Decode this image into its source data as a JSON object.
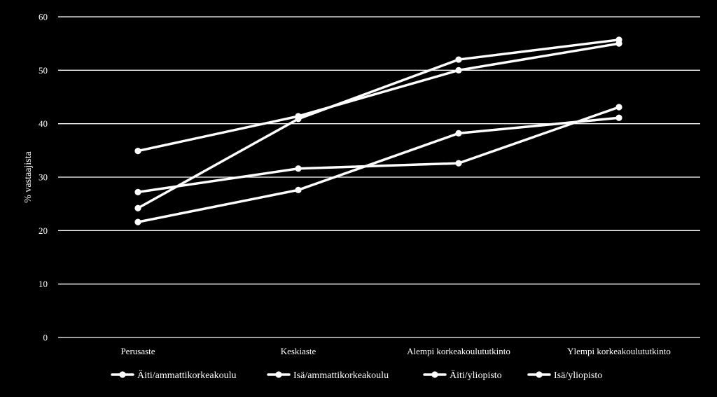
{
  "chart_data": {
    "type": "line",
    "ylabel": "% vastaajista",
    "ylim": [
      0,
      60
    ],
    "yticks": [
      0,
      10,
      20,
      30,
      40,
      50,
      60
    ],
    "grid": true,
    "legend_position": "bottom",
    "categories": [
      "Perusaste",
      "Keskiaste",
      "Alempi korkeakoulututkinto",
      "Ylempi korkeakoulututkinto"
    ],
    "series": [
      {
        "name": "Äiti/ammattikorkeakoulu",
        "values": [
          27.2,
          31.6,
          32.6,
          43.1
        ]
      },
      {
        "name": "Isä/ammattikorkeakoulu",
        "values": [
          21.6,
          27.6,
          38.2,
          41.1
        ]
      },
      {
        "name": "Äiti/yliopisto",
        "values": [
          24.2,
          40.9,
          52.0,
          55.7
        ]
      },
      {
        "name": "Isä/yliopisto",
        "values": [
          34.9,
          41.4,
          50.0,
          55.0
        ]
      }
    ],
    "colors": {
      "background": "#000000",
      "lines": "#ffffff",
      "grid": "#ffffff",
      "text": "#ffffff"
    }
  }
}
